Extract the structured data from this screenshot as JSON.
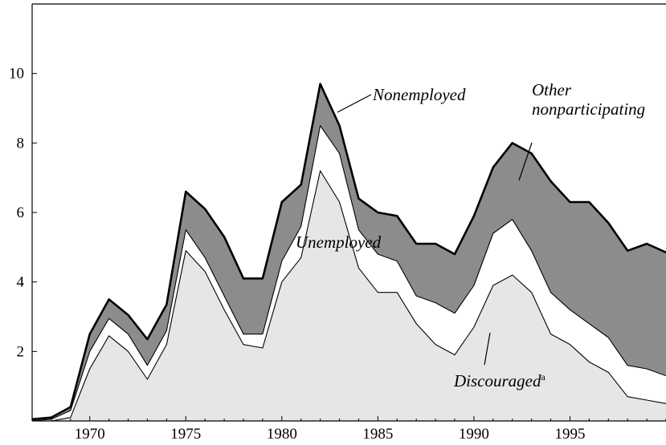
{
  "chart_data": {
    "type": "stacked_area",
    "x": [
      1967,
      1968,
      1969,
      1970,
      1971,
      1972,
      1973,
      1974,
      1975,
      1976,
      1977,
      1978,
      1979,
      1980,
      1981,
      1982,
      1983,
      1984,
      1985,
      1986,
      1987,
      1988,
      1989,
      1990,
      1991,
      1992,
      1993,
      1994,
      1995,
      1996,
      1997,
      1998,
      1999,
      2000
    ],
    "series": [
      {
        "name": "Unemployed",
        "color": "#e6e6e6",
        "values": [
          0,
          0,
          0.1,
          1.5,
          2.45,
          2.0,
          1.2,
          2.2,
          4.9,
          4.3,
          3.2,
          2.2,
          2.1,
          4.0,
          4.7,
          7.2,
          6.3,
          4.4,
          3.7,
          3.7,
          2.8,
          2.2,
          1.9,
          2.7,
          3.9,
          4.2,
          3.7,
          2.5,
          2.2,
          1.7,
          1.4,
          0.7,
          0.6,
          0.5
        ]
      },
      {
        "name": "Discouraged",
        "color": "#ffffff",
        "values": [
          0,
          0.05,
          0.2,
          0.5,
          0.5,
          0.5,
          0.4,
          0.4,
          0.6,
          0.4,
          0.4,
          0.3,
          0.4,
          0.6,
          0.9,
          1.3,
          1.4,
          1.1,
          1.1,
          0.9,
          0.8,
          1.2,
          1.2,
          1.2,
          1.5,
          1.6,
          1.2,
          1.2,
          1.0,
          1.1,
          1.0,
          0.9,
          0.9,
          0.8
        ]
      },
      {
        "name": "Other nonparticipating",
        "color": "#8c8c8e",
        "values": [
          0.05,
          0.05,
          0.1,
          0.5,
          0.55,
          0.55,
          0.75,
          0.75,
          1.1,
          1.4,
          1.7,
          1.6,
          1.6,
          1.7,
          1.2,
          1.2,
          0.8,
          0.9,
          1.2,
          1.3,
          1.5,
          1.7,
          1.7,
          2.0,
          1.9,
          2.2,
          2.8,
          3.2,
          3.1,
          3.5,
          3.3,
          3.3,
          3.6,
          3.55
        ]
      }
    ],
    "annotations": {
      "total": "Nonemployed",
      "footnote_marker": "a"
    },
    "xlim": [
      1967,
      2000
    ],
    "xticks": [
      1970,
      1975,
      1980,
      1985,
      1990,
      1995
    ],
    "ylim": [
      0,
      12
    ],
    "yticks": [
      2,
      4,
      6,
      8,
      10
    ]
  }
}
